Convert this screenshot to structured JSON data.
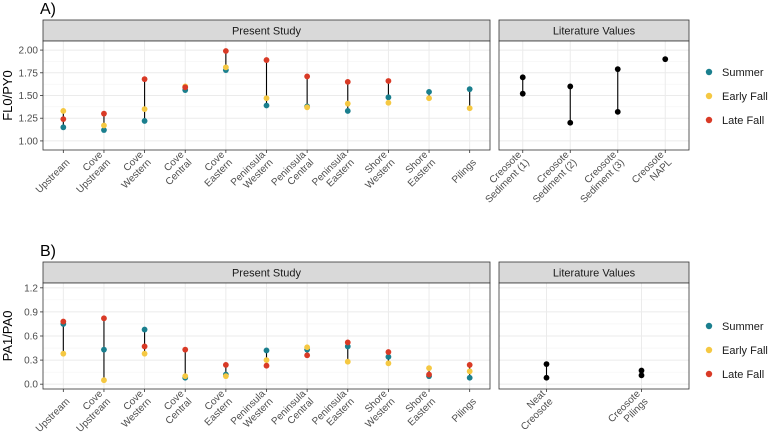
{
  "chart_data": [
    {
      "type": "scatter",
      "panel_label": "A)",
      "ylabel": "FL0/PY0",
      "ylim": [
        0.9,
        2.1
      ],
      "yticks": [
        1.0,
        1.25,
        1.5,
        1.75,
        2.0
      ],
      "ytick_labels": [
        "1.00",
        "1.25",
        "1.50",
        "1.75",
        "2.00"
      ],
      "facets": [
        {
          "title": "Present Study",
          "categories": [
            "Upstream",
            "Cove\nUpstream",
            "Cove\nWestern",
            "Cove\nCentral",
            "Cove\nEastern",
            "Peninsula\nWestern",
            "Peninsula\nCentral",
            "Peninsula\nEastern",
            "Shore\nWestern",
            "Shore\nEastern",
            "Pilings"
          ],
          "series": [
            {
              "name": "Summer",
              "values": [
                1.15,
                1.12,
                1.22,
                1.56,
                1.78,
                1.39,
                1.38,
                1.33,
                1.48,
                1.54,
                1.57
              ]
            },
            {
              "name": "Early Fall",
              "values": [
                1.33,
                1.17,
                1.35,
                1.6,
                1.81,
                1.47,
                1.37,
                1.41,
                1.42,
                1.47,
                1.36
              ]
            },
            {
              "name": "Late Fall",
              "values": [
                1.24,
                1.3,
                1.68,
                1.59,
                1.99,
                1.89,
                1.71,
                1.65,
                1.66,
                null,
                null
              ]
            }
          ]
        },
        {
          "title": "Literature Values",
          "categories": [
            "Creosote\nSediment (1)",
            "Creosote\nSediment (2)",
            "Creosote\nSediment (3)",
            "Creosote\nNAPL"
          ],
          "ranges": [
            [
              1.52,
              1.7
            ],
            [
              1.2,
              1.6
            ],
            [
              1.32,
              1.79
            ],
            [
              1.9,
              1.9
            ]
          ]
        }
      ]
    },
    {
      "type": "scatter",
      "panel_label": "B)",
      "ylabel": "PA1/PA0",
      "ylim": [
        -0.06,
        1.26
      ],
      "yticks": [
        0.0,
        0.3,
        0.6,
        0.9,
        1.2
      ],
      "ytick_labels": [
        "0.0",
        "0.3",
        "0.6",
        "0.9",
        "1.2"
      ],
      "facets": [
        {
          "title": "Present Study",
          "categories": [
            "Upstream",
            "Cove\nUpstream",
            "Cove\nWestern",
            "Cove\nCentral",
            "Cove\nEastern",
            "Peninsula\nWestern",
            "Peninsula\nCentral",
            "Peninsula\nEastern",
            "Shore\nWestern",
            "Shore\nEastern",
            "Pilings"
          ],
          "series": [
            {
              "name": "Summer",
              "values": [
                0.75,
                0.43,
                0.68,
                0.08,
                0.12,
                0.42,
                0.43,
                0.47,
                0.34,
                0.1,
                0.08
              ]
            },
            {
              "name": "Early Fall",
              "values": [
                0.38,
                0.05,
                0.38,
                0.1,
                0.1,
                0.3,
                0.46,
                0.28,
                0.26,
                0.2,
                0.16
              ]
            },
            {
              "name": "Late Fall",
              "values": [
                0.78,
                0.82,
                0.47,
                0.43,
                0.24,
                0.23,
                0.36,
                0.52,
                0.4,
                0.12,
                0.24
              ]
            }
          ]
        },
        {
          "title": "Literature Values",
          "categories": [
            "Neat\nCreosote",
            "Creosote\nPilings"
          ],
          "ranges": [
            [
              0.08,
              0.25
            ],
            [
              0.11,
              0.17
            ]
          ]
        }
      ]
    }
  ],
  "legend": {
    "position": "right",
    "entries": [
      {
        "label": "Summer",
        "color": "#1a7f8e"
      },
      {
        "label": "Early Fall",
        "color": "#f5c842"
      },
      {
        "label": "Late Fall",
        "color": "#d93a26"
      }
    ]
  },
  "colors": {
    "range_line": "#000000",
    "literature_point": "#000000",
    "strip_bg": "#d9d9d9",
    "panel_border": "#333333",
    "grid": "#ebebeb"
  }
}
